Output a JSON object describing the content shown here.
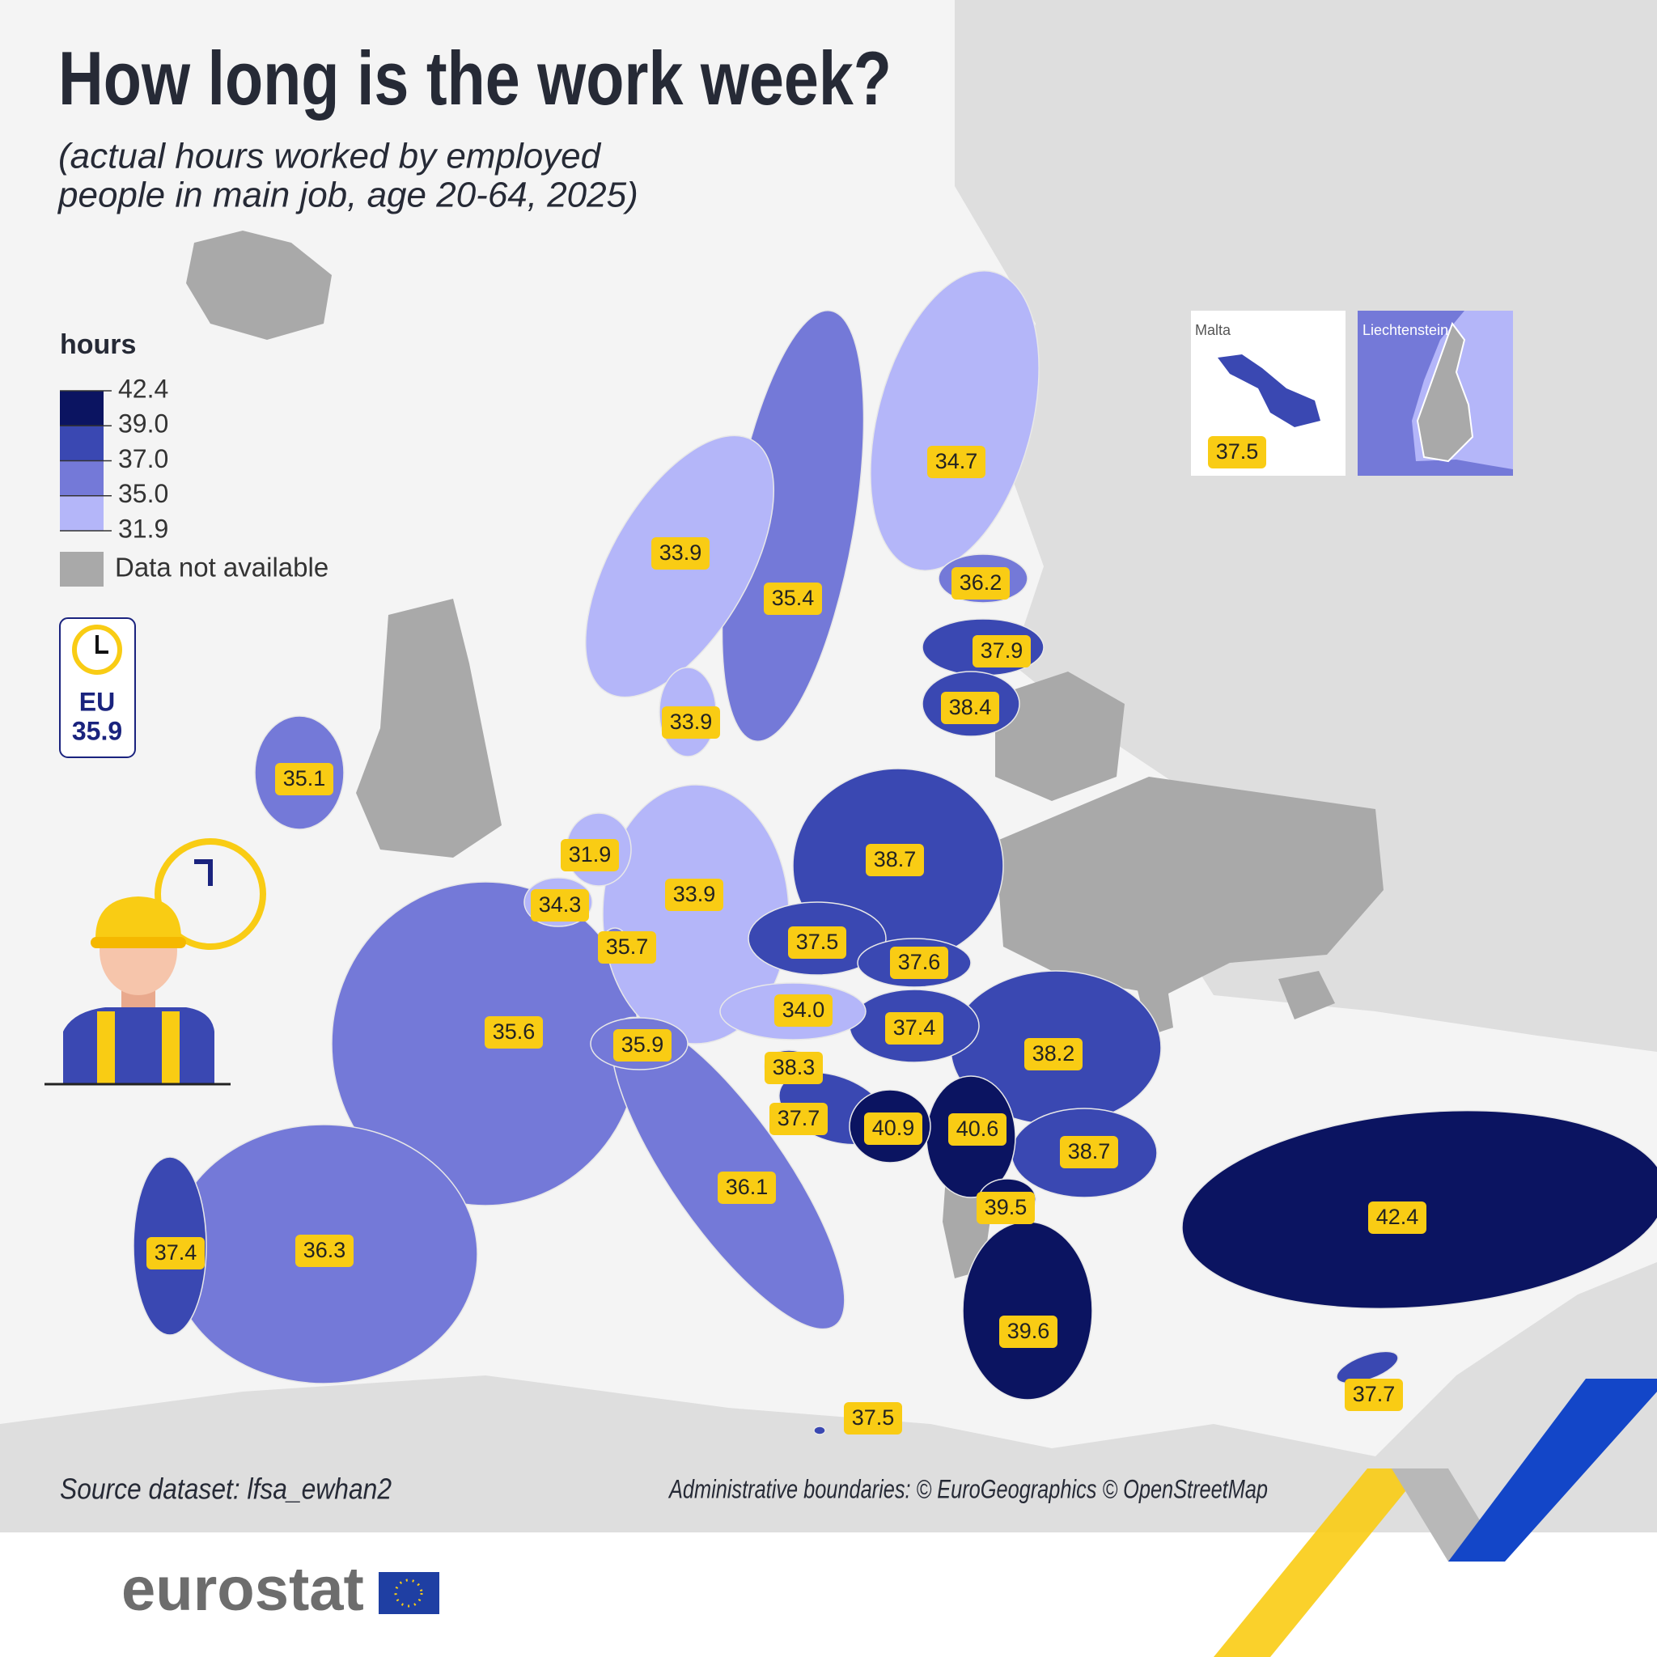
{
  "title": "How long is the work week?",
  "subtitle": [
    "(actual hours worked by employed",
    "people in main job, age 20-64, 2025)"
  ],
  "legend": {
    "title": "hours",
    "breaks": [
      42.4,
      {
        "value": 39,
        "label": "39.0"
      },
      {
        "value": 37,
        "label": "37.0"
      },
      {
        "value": 35,
        "label": "35.0"
      },
      31.9
    ],
    "colors": [
      "#0b1461",
      "#3a48b2",
      "#7479d8",
      "#b4b6f9"
    ],
    "no_data_label": "Data not available",
    "no_data_color": "#a9a9a9"
  },
  "eu_badge": {
    "label": "EU",
    "value": 35.9
  },
  "regions": [
    34.7,
    33.9,
    35.4,
    36.2,
    37.9,
    38.4,
    33.9,
    35.1,
    38.7,
    31.9,
    34.3,
    33.9,
    35.7,
    37.5,
    37.6,
    35.6,
    {
      "value": 34,
      "label": "34.0"
    },
    37.4,
    38.2,
    35.9,
    38.3,
    37.7,
    40.9,
    40.6,
    38.7,
    39.5,
    36.1,
    37.4,
    36.3,
    39.6,
    42.4,
    37.7,
    37.5
  ],
  "insets": [
    {
      "name": "Malta",
      "value": 37.5
    },
    {
      "name": "Liechtenstein"
    }
  ],
  "source": "Source dataset: lfsa_ewhan2",
  "credits": "Administrative boundaries: © EuroGeographics © OpenStreetMap",
  "logo": "eurostat"
}
